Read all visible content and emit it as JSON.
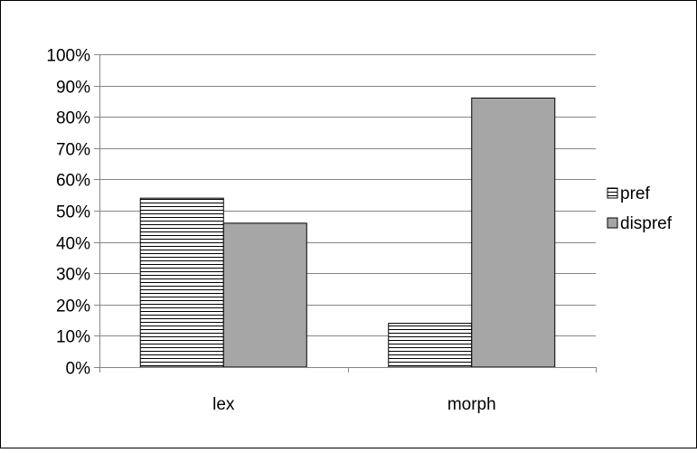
{
  "chart_data": {
    "type": "bar",
    "title": "",
    "xlabel": "",
    "ylabel": "",
    "categories": [
      "lex",
      "morph"
    ],
    "series": [
      {
        "name": "pref",
        "values": [
          54,
          14
        ],
        "pattern": "horizontal-lines"
      },
      {
        "name": "dispref",
        "values": [
          46,
          86
        ],
        "color": "#a6a6a6"
      }
    ],
    "ylim": [
      0,
      100
    ],
    "y_ticks": [
      0,
      10,
      20,
      30,
      40,
      50,
      60,
      70,
      80,
      90,
      100
    ],
    "y_tick_labels": [
      "0%",
      "10%",
      "20%",
      "30%",
      "40%",
      "50%",
      "60%",
      "70%",
      "80%",
      "90%",
      "100%"
    ],
    "grid": true,
    "legend_position": "right"
  }
}
